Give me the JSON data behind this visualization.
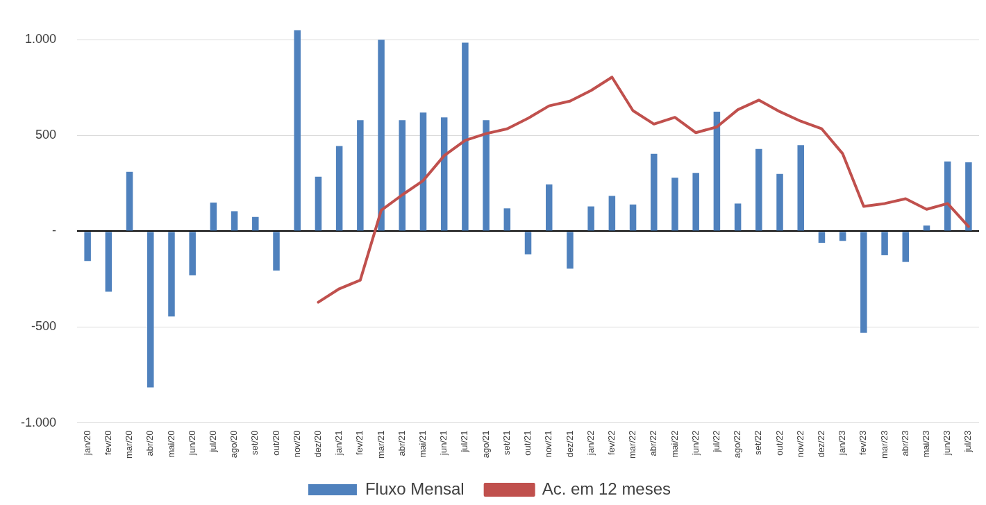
{
  "chart_data": {
    "type": "bar",
    "categories": [
      "jan/20",
      "fev/20",
      "mar/20",
      "abr/20",
      "mai/20",
      "jun/20",
      "jul/20",
      "ago/20",
      "set/20",
      "out/20",
      "nov/20",
      "dez/20",
      "jan/21",
      "fev/21",
      "mar/21",
      "abr/21",
      "mai/21",
      "jun/21",
      "jul/21",
      "ago/21",
      "set/21",
      "out/21",
      "nov/21",
      "dez/21",
      "jan/22",
      "fev/22",
      "mar/22",
      "abr/22",
      "mai/22",
      "jun/22",
      "jul/22",
      "ago/22",
      "set/22",
      "out/22",
      "nov/22",
      "dez/22",
      "jan/23",
      "fev/23",
      "mar/23",
      "abr/23",
      "mai/23",
      "jun/23",
      "jul/23"
    ],
    "series": [
      {
        "name": "Fluxo Mensal",
        "color": "#4f81bd",
        "values": [
          -155,
          -315,
          310,
          -815,
          -445,
          -230,
          150,
          105,
          75,
          -205,
          1050,
          285,
          445,
          580,
          1000,
          580,
          620,
          595,
          985,
          580,
          120,
          -120,
          245,
          -195,
          130,
          185,
          140,
          405,
          280,
          305,
          625,
          145,
          430,
          300,
          450,
          -60,
          -50,
          -530,
          -125,
          -160,
          30,
          365,
          360
        ]
      },
      {
        "name": "Ac. em 12 meses",
        "type": "line",
        "color": "#c0504d",
        "values": [
          null,
          null,
          null,
          null,
          null,
          null,
          null,
          null,
          null,
          null,
          null,
          -370,
          -300,
          -255,
          110,
          190,
          265,
          395,
          475,
          510,
          535,
          590,
          655,
          680,
          735,
          805,
          630,
          560,
          595,
          515,
          545,
          635,
          685,
          625,
          575,
          535,
          405,
          130,
          145,
          170,
          115,
          145,
          25
        ]
      }
    ],
    "ylim": [
      -1000,
      1060
    ],
    "yticks": [
      {
        "value": 1000,
        "label": "1.000"
      },
      {
        "value": 500,
        "label": "500"
      },
      {
        "value": 0,
        "label": "-"
      },
      {
        "value": -500,
        "label": "-500"
      },
      {
        "value": -1000,
        "label": "-1.000"
      }
    ],
    "grid": "y",
    "legend": "bottom",
    "marker": "none",
    "line_style": "solid"
  }
}
